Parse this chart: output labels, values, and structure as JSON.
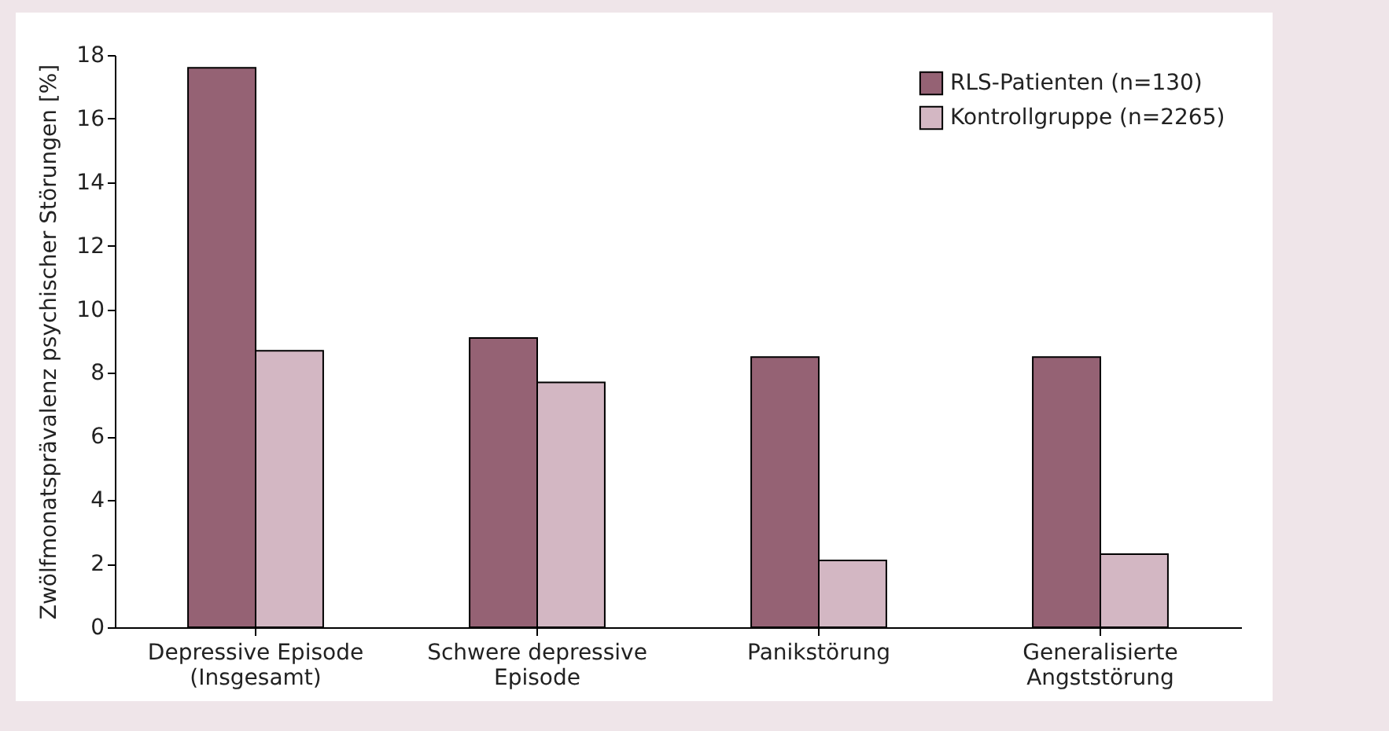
{
  "chart_data": {
    "type": "bar",
    "ylabel": "Zwölfmonatsprävalenz psychischer Störungen [%]",
    "categories": [
      "Depressive Episode\n(Insgesamt)",
      "Schwere depressive\nEpisode",
      "Panikstörung",
      "Generalisierte\nAngststörung"
    ],
    "series": [
      {
        "name": "RLS-Patienten (n=130)",
        "color": "#956274",
        "values": [
          17.6,
          9.1,
          8.5,
          8.5
        ]
      },
      {
        "name": "Kontrollgruppe (n=2265)",
        "color": "#d3b7c3",
        "values": [
          8.7,
          7.7,
          2.1,
          2.3
        ]
      }
    ],
    "ylim": [
      0,
      18
    ],
    "yticks": [
      0,
      2,
      4,
      6,
      8,
      10,
      12,
      14,
      16,
      18
    ],
    "grid": false,
    "legend": "top right"
  }
}
